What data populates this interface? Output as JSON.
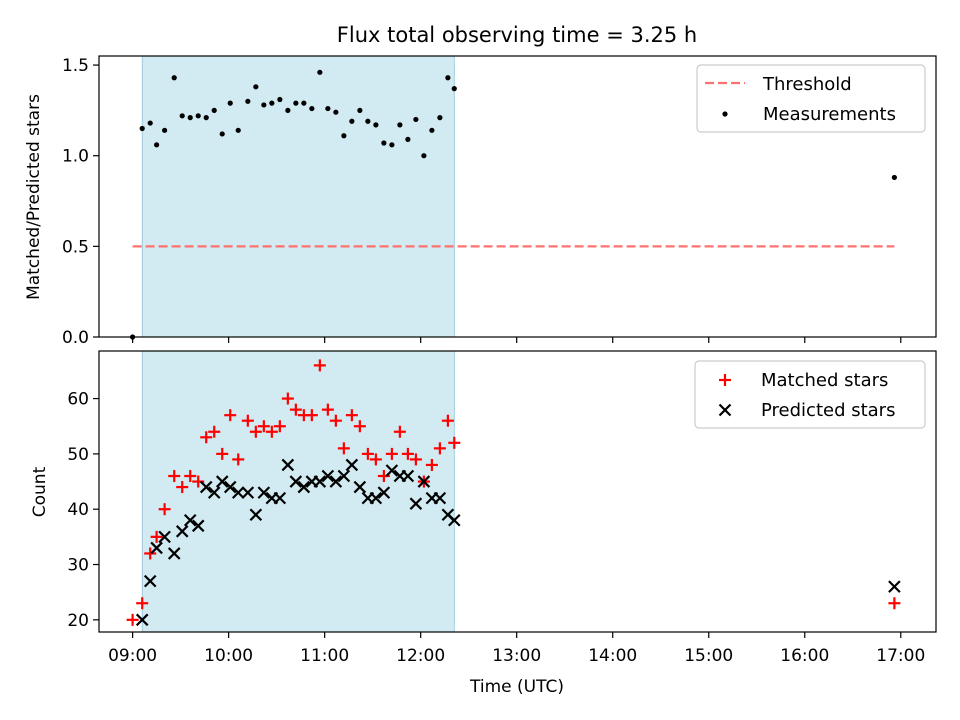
{
  "chart_data": [
    {
      "type": "scatter",
      "title": "Flux total observing time = 3.25 h",
      "ylabel": "Matched/Predicted stars",
      "xlabel": "",
      "xlim": [
        "08:39",
        "17:22"
      ],
      "ylim": [
        0,
        1.55
      ],
      "yticks": [
        0.0,
        0.5,
        1.0,
        1.5
      ],
      "ytick_labels": [
        "0.0",
        "0.5",
        "1.0",
        "1.5"
      ],
      "x_unit": "time of day (UTC), HH:MM",
      "observing_window": [
        "09:06",
        "12:21"
      ],
      "observing_window_color": "#add8e6",
      "legend_position": "upper right",
      "threshold": {
        "name": "Threshold",
        "value": 0.5,
        "x": [
          "09:00",
          "16:56"
        ],
        "color": "#ff7070",
        "style": "dashed"
      },
      "series": [
        {
          "name": "Measurements",
          "color": "#000000",
          "marker": "dot",
          "points": [
            [
              "09:00",
              0.0
            ],
            [
              "09:06",
              1.15
            ],
            [
              "09:11",
              1.18
            ],
            [
              "09:15",
              1.06
            ],
            [
              "09:20",
              1.14
            ],
            [
              "09:26",
              1.43
            ],
            [
              "09:31",
              1.22
            ],
            [
              "09:36",
              1.21
            ],
            [
              "09:41",
              1.22
            ],
            [
              "09:46",
              1.21
            ],
            [
              "09:51",
              1.25
            ],
            [
              "09:56",
              1.12
            ],
            [
              "10:01",
              1.29
            ],
            [
              "10:06",
              1.14
            ],
            [
              "10:12",
              1.3
            ],
            [
              "10:17",
              1.38
            ],
            [
              "10:22",
              1.28
            ],
            [
              "10:27",
              1.29
            ],
            [
              "10:32",
              1.31
            ],
            [
              "10:37",
              1.25
            ],
            [
              "10:42",
              1.29
            ],
            [
              "10:47",
              1.29
            ],
            [
              "10:52",
              1.26
            ],
            [
              "10:57",
              1.46
            ],
            [
              "11:02",
              1.26
            ],
            [
              "11:07",
              1.24
            ],
            [
              "11:12",
              1.11
            ],
            [
              "11:17",
              1.19
            ],
            [
              "11:22",
              1.25
            ],
            [
              "11:27",
              1.19
            ],
            [
              "11:32",
              1.17
            ],
            [
              "11:37",
              1.07
            ],
            [
              "11:42",
              1.06
            ],
            [
              "11:47",
              1.17
            ],
            [
              "11:52",
              1.09
            ],
            [
              "11:57",
              1.2
            ],
            [
              "12:02",
              1.0
            ],
            [
              "12:07",
              1.14
            ],
            [
              "12:12",
              1.21
            ],
            [
              "12:17",
              1.43
            ],
            [
              "12:21",
              1.37
            ],
            [
              "16:56",
              0.88
            ]
          ]
        }
      ]
    },
    {
      "type": "scatter",
      "title": "",
      "ylabel": "Count",
      "xlabel": "Time (UTC)",
      "xlim": [
        "08:39",
        "17:22"
      ],
      "ylim": [
        17.8,
        68.6
      ],
      "yticks": [
        20,
        30,
        40,
        50,
        60
      ],
      "ytick_labels": [
        "20",
        "30",
        "40",
        "50",
        "60"
      ],
      "xticks": [
        "09:00",
        "10:00",
        "11:00",
        "12:00",
        "13:00",
        "14:00",
        "15:00",
        "16:00",
        "17:00"
      ],
      "xtick_labels": [
        "09:00",
        "10:00",
        "11:00",
        "12:00",
        "13:00",
        "14:00",
        "15:00",
        "16:00",
        "17:00"
      ],
      "x_unit": "time of day (UTC), HH:MM",
      "observing_window": [
        "09:06",
        "12:21"
      ],
      "observing_window_color": "#add8e6",
      "legend_position": "upper right",
      "series": [
        {
          "name": "Matched stars",
          "color": "#ff0000",
          "marker": "plus",
          "points": [
            [
              "09:00",
              20
            ],
            [
              "09:06",
              23
            ],
            [
              "09:11",
              32
            ],
            [
              "09:15",
              35
            ],
            [
              "09:20",
              40
            ],
            [
              "09:26",
              46
            ],
            [
              "09:31",
              44
            ],
            [
              "09:36",
              46
            ],
            [
              "09:41",
              45
            ],
            [
              "09:46",
              53
            ],
            [
              "09:51",
              54
            ],
            [
              "09:56",
              50
            ],
            [
              "10:01",
              57
            ],
            [
              "10:06",
              49
            ],
            [
              "10:12",
              56
            ],
            [
              "10:17",
              54
            ],
            [
              "10:22",
              55
            ],
            [
              "10:27",
              54
            ],
            [
              "10:32",
              55
            ],
            [
              "10:37",
              60
            ],
            [
              "10:42",
              58
            ],
            [
              "10:47",
              57
            ],
            [
              "10:52",
              57
            ],
            [
              "10:57",
              66
            ],
            [
              "11:02",
              58
            ],
            [
              "11:07",
              56
            ],
            [
              "11:12",
              51
            ],
            [
              "11:17",
              57
            ],
            [
              "11:22",
              55
            ],
            [
              "11:27",
              50
            ],
            [
              "11:32",
              49
            ],
            [
              "11:37",
              46
            ],
            [
              "11:42",
              50
            ],
            [
              "11:47",
              54
            ],
            [
              "11:52",
              50
            ],
            [
              "11:57",
              49
            ],
            [
              "12:02",
              45
            ],
            [
              "12:07",
              48
            ],
            [
              "12:12",
              51
            ],
            [
              "12:17",
              56
            ],
            [
              "12:21",
              52
            ],
            [
              "16:56",
              23
            ]
          ]
        },
        {
          "name": "Predicted stars",
          "color": "#000000",
          "marker": "x",
          "points": [
            [
              "09:06",
              20
            ],
            [
              "09:11",
              27
            ],
            [
              "09:15",
              33
            ],
            [
              "09:20",
              35
            ],
            [
              "09:26",
              32
            ],
            [
              "09:31",
              36
            ],
            [
              "09:36",
              38
            ],
            [
              "09:41",
              37
            ],
            [
              "09:46",
              44
            ],
            [
              "09:51",
              43
            ],
            [
              "09:56",
              45
            ],
            [
              "10:01",
              44
            ],
            [
              "10:06",
              43
            ],
            [
              "10:12",
              43
            ],
            [
              "10:17",
              39
            ],
            [
              "10:22",
              43
            ],
            [
              "10:27",
              42
            ],
            [
              "10:32",
              42
            ],
            [
              "10:37",
              48
            ],
            [
              "10:42",
              45
            ],
            [
              "10:47",
              44
            ],
            [
              "10:52",
              45
            ],
            [
              "10:57",
              45
            ],
            [
              "11:02",
              46
            ],
            [
              "11:07",
              45
            ],
            [
              "11:12",
              46
            ],
            [
              "11:17",
              48
            ],
            [
              "11:22",
              44
            ],
            [
              "11:27",
              42
            ],
            [
              "11:32",
              42
            ],
            [
              "11:37",
              43
            ],
            [
              "11:42",
              47
            ],
            [
              "11:47",
              46
            ],
            [
              "11:52",
              46
            ],
            [
              "11:57",
              41
            ],
            [
              "12:02",
              45
            ],
            [
              "12:07",
              42
            ],
            [
              "12:12",
              42
            ],
            [
              "12:17",
              39
            ],
            [
              "12:21",
              38
            ],
            [
              "16:56",
              26
            ]
          ]
        }
      ]
    }
  ]
}
